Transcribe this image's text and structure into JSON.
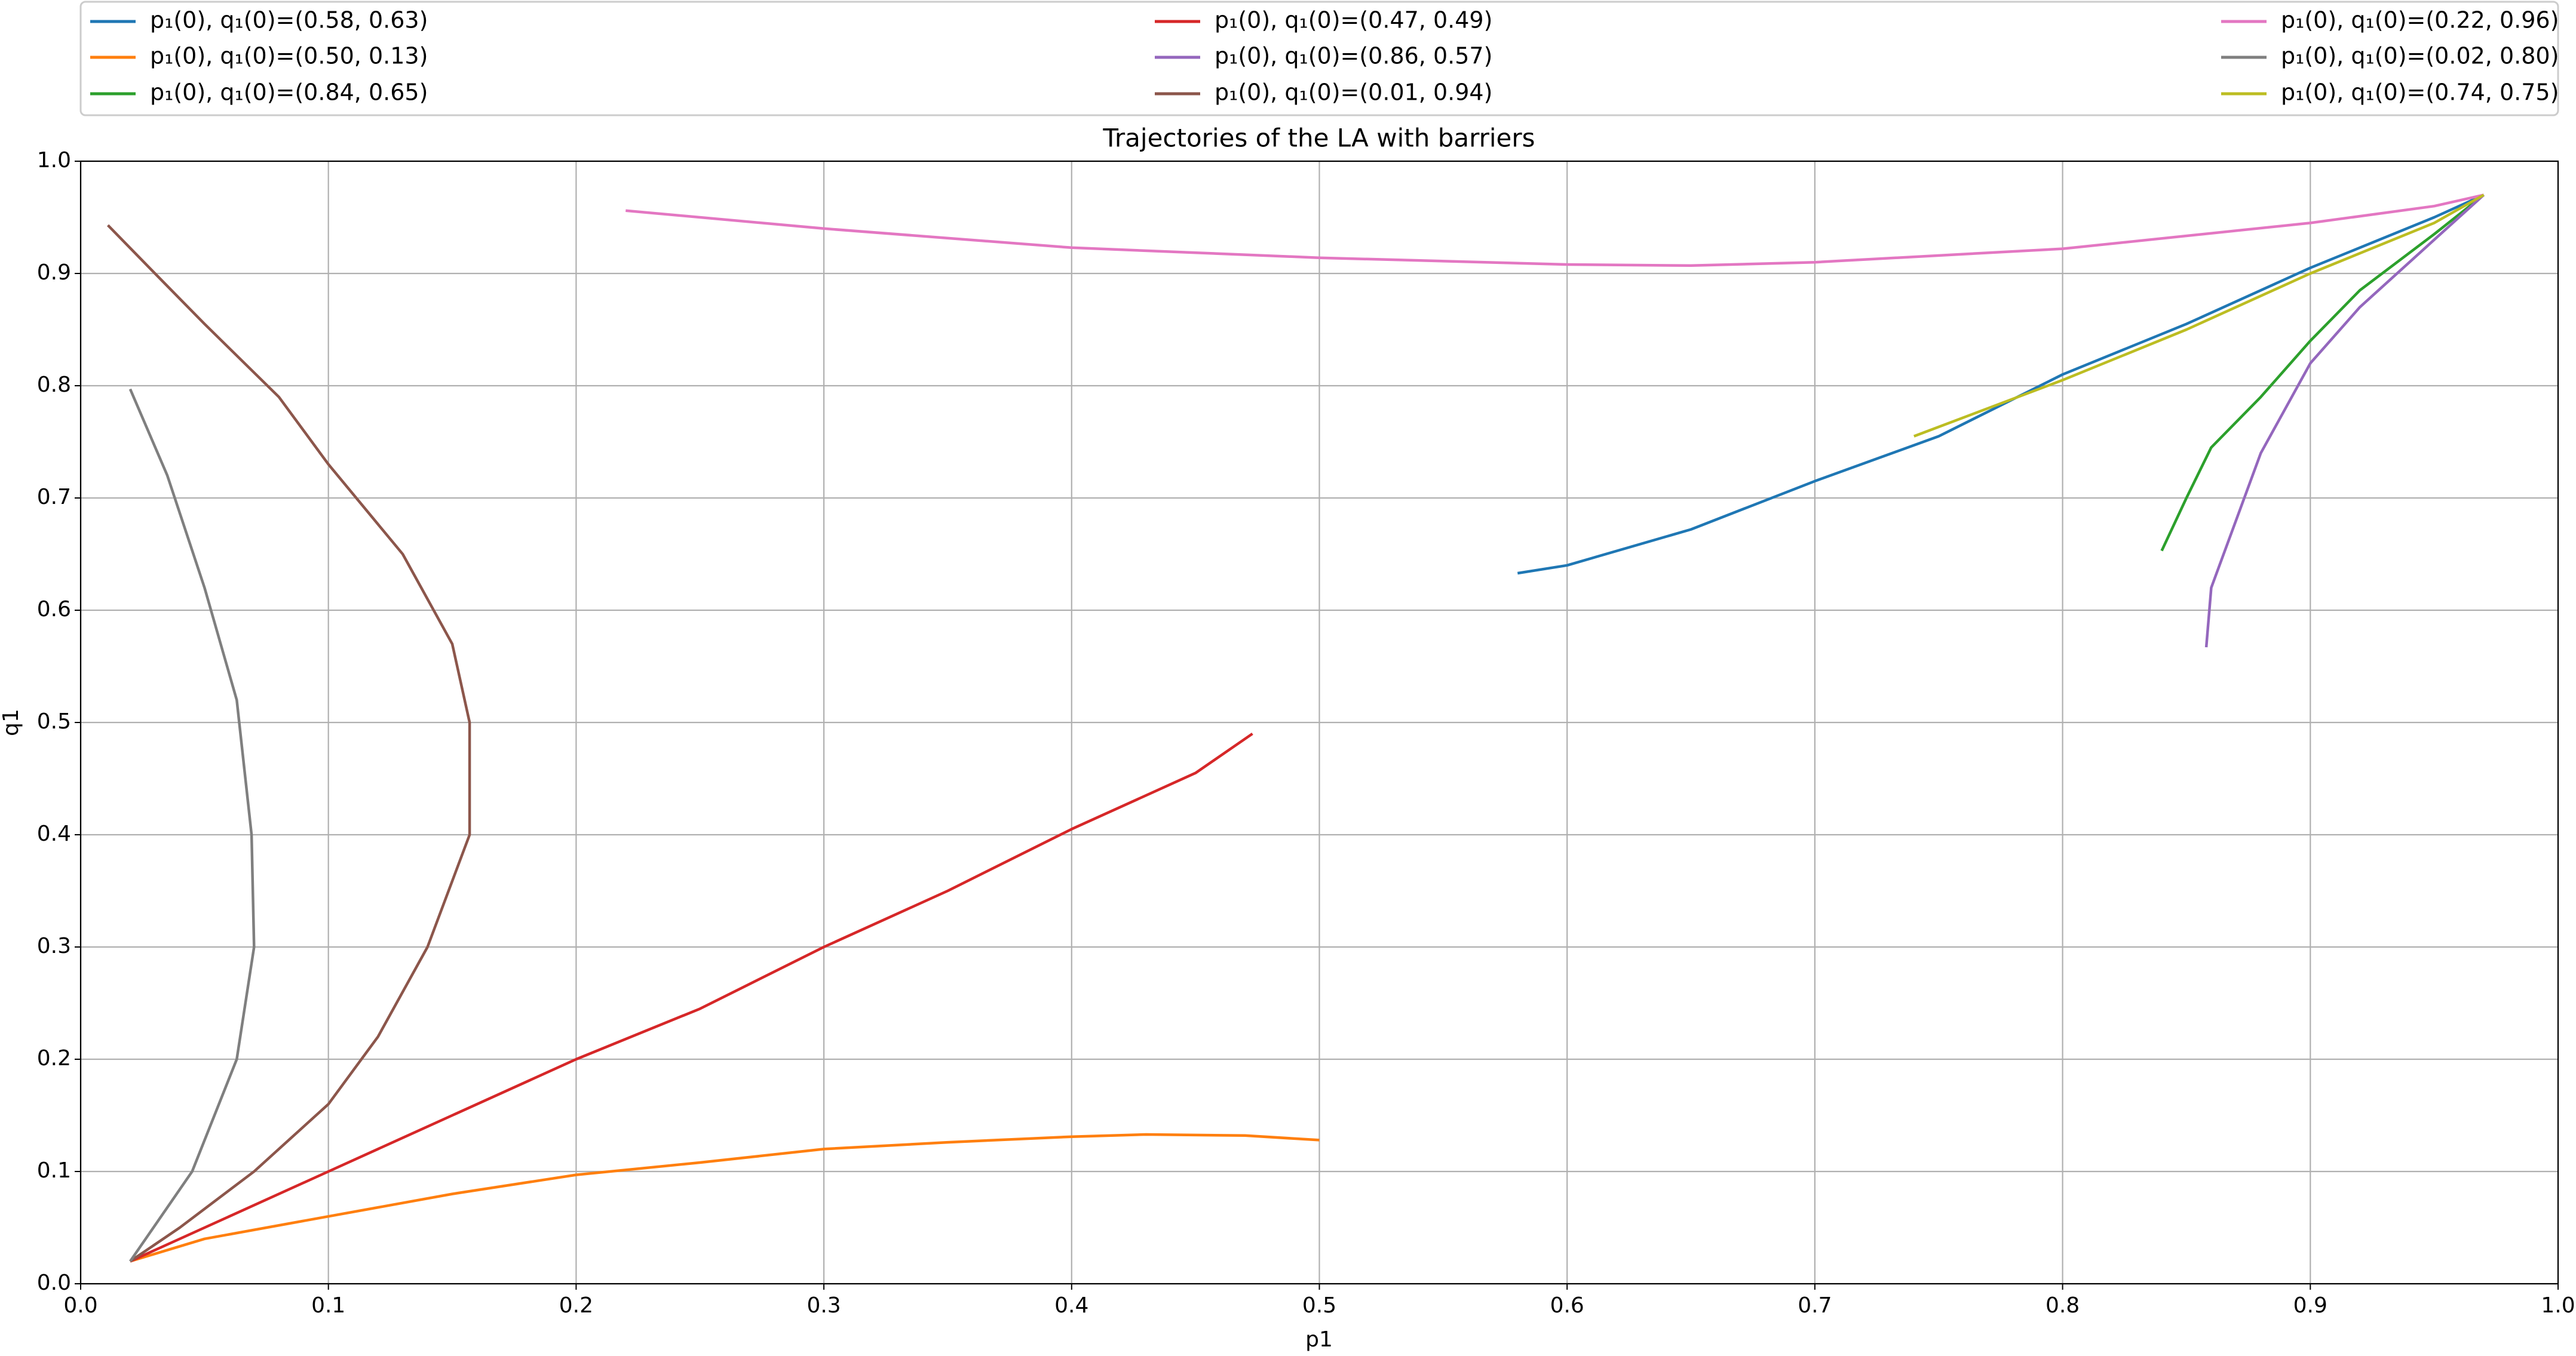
{
  "chart_data": {
    "type": "line",
    "title": "Trajectories of the LA with barriers",
    "x_label": "p1",
    "y_label": "q1",
    "xlim": [
      0,
      1
    ],
    "ylim": [
      0,
      1
    ],
    "xticks": [
      {
        "value": 0,
        "label": "0.0"
      },
      0.1,
      0.2,
      0.3,
      0.4,
      0.5,
      0.6,
      0.7,
      0.8,
      0.9,
      {
        "value": 1,
        "label": "1.0"
      }
    ],
    "yticks": [
      {
        "value": 0,
        "label": "0.0"
      },
      0.1,
      0.2,
      0.3,
      0.4,
      0.5,
      0.6,
      0.7,
      0.8,
      0.9,
      {
        "value": 1,
        "label": "1.0"
      }
    ],
    "grid": true,
    "legend": "top",
    "series": [
      {
        "name": "p₁(0), q₁(0)=(0.58, 0.63)",
        "color": "#1f77b4",
        "x": [
          0.58,
          0.6,
          0.65,
          0.7,
          0.75,
          0.8,
          0.85,
          0.9,
          0.95,
          0.97
        ],
        "values": [
          0.633,
          0.64,
          0.672,
          0.715,
          0.755,
          0.81,
          0.855,
          0.905,
          0.95,
          0.97
        ]
      },
      {
        "name": "p₁(0), q₁(0)=(0.50, 0.13)",
        "color": "#ff7f0e",
        "x": [
          0.02,
          0.05,
          0.1,
          0.15,
          0.2,
          0.25,
          0.3,
          0.35,
          0.4,
          0.43,
          0.47,
          0.5
        ],
        "values": [
          0.02,
          0.04,
          0.06,
          0.08,
          0.097,
          0.108,
          0.12,
          0.126,
          0.131,
          0.133,
          0.132,
          0.128
        ]
      },
      {
        "name": "p₁(0), q₁(0)=(0.84, 0.65)",
        "color": "#2ca02c",
        "x": [
          0.84,
          0.85,
          0.86,
          0.88,
          0.9,
          0.92,
          0.95,
          0.97
        ],
        "values": [
          0.653,
          0.7,
          0.745,
          0.79,
          0.84,
          0.885,
          0.935,
          0.97
        ]
      },
      {
        "name": "p₁(0), q₁(0)=(0.47, 0.49)",
        "color": "#d62728",
        "x": [
          0.02,
          0.05,
          0.1,
          0.15,
          0.2,
          0.25,
          0.3,
          0.35,
          0.4,
          0.45,
          0.473
        ],
        "values": [
          0.02,
          0.05,
          0.1,
          0.15,
          0.2,
          0.245,
          0.3,
          0.35,
          0.405,
          0.455,
          0.49
        ]
      },
      {
        "name": "p₁(0), q₁(0)=(0.86, 0.57)",
        "color": "#9467bd",
        "x": [
          0.858,
          0.86,
          0.87,
          0.88,
          0.9,
          0.92,
          0.95,
          0.97
        ],
        "values": [
          0.567,
          0.62,
          0.68,
          0.74,
          0.82,
          0.87,
          0.93,
          0.97
        ]
      },
      {
        "name": "p₁(0), q₁(0)=(0.01, 0.94)",
        "color": "#8c564b",
        "x": [
          0.011,
          0.03,
          0.05,
          0.08,
          0.1,
          0.13,
          0.15,
          0.157,
          0.157,
          0.14,
          0.12,
          0.1,
          0.07,
          0.04,
          0.02
        ],
        "values": [
          0.943,
          0.9,
          0.855,
          0.79,
          0.73,
          0.65,
          0.57,
          0.5,
          0.4,
          0.3,
          0.22,
          0.16,
          0.1,
          0.05,
          0.02
        ]
      },
      {
        "name": "p₁(0), q₁(0)=(0.22, 0.96)",
        "color": "#e377c2",
        "x": [
          0.22,
          0.3,
          0.4,
          0.5,
          0.6,
          0.65,
          0.7,
          0.8,
          0.9,
          0.95,
          0.97
        ],
        "values": [
          0.956,
          0.94,
          0.923,
          0.914,
          0.908,
          0.907,
          0.91,
          0.922,
          0.945,
          0.96,
          0.97
        ]
      },
      {
        "name": "p₁(0), q₁(0)=(0.02, 0.80)",
        "color": "#7f7f7f",
        "x": [
          0.02,
          0.035,
          0.05,
          0.063,
          0.069,
          0.07,
          0.063,
          0.045,
          0.02
        ],
        "values": [
          0.797,
          0.72,
          0.62,
          0.52,
          0.4,
          0.3,
          0.2,
          0.1,
          0.02
        ]
      },
      {
        "name": "p₁(0), q₁(0)=(0.74, 0.75)",
        "color": "#bcbd22",
        "x": [
          0.74,
          0.8,
          0.85,
          0.9,
          0.95,
          0.97
        ],
        "values": [
          0.755,
          0.805,
          0.85,
          0.9,
          0.945,
          0.97
        ]
      }
    ]
  }
}
